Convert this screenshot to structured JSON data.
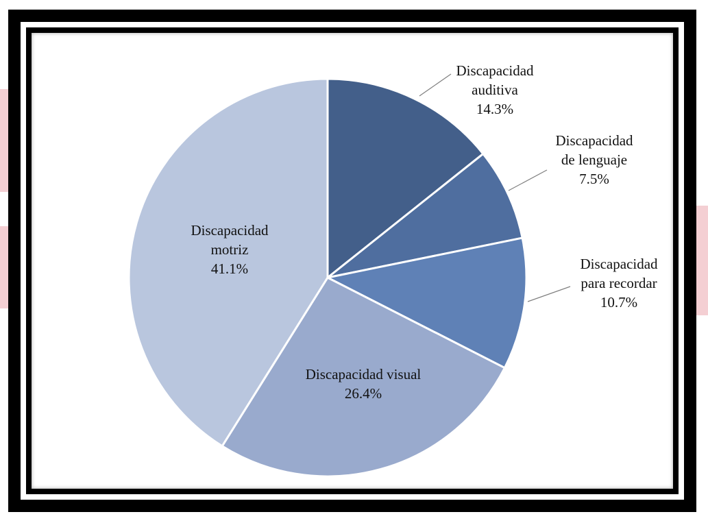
{
  "chart_data": {
    "type": "pie",
    "title": "",
    "slices": [
      {
        "label_lines": [
          "Discapacidad",
          "auditiva"
        ],
        "percent_label": "14.3%",
        "value": 14.3,
        "color": "#435f8a"
      },
      {
        "label_lines": [
          "Discapacidad",
          "de lenguaje"
        ],
        "percent_label": "7.5%",
        "value": 7.5,
        "color": "#4f6e9f"
      },
      {
        "label_lines": [
          "Discapacidad",
          "para recordar"
        ],
        "percent_label": "10.7%",
        "value": 10.7,
        "color": "#5f81b6"
      },
      {
        "label_lines": [
          "Discapacidad visual"
        ],
        "percent_label": "26.4%",
        "value": 26.4,
        "color": "#99aacd"
      },
      {
        "label_lines": [
          "Discapacidad",
          "motriz"
        ],
        "percent_label": "41.1%",
        "value": 41.1,
        "color": "#b9c6de"
      }
    ],
    "start_angle_deg": 0,
    "direction": "clockwise",
    "legend": "none",
    "frame_color": "#000000",
    "background_accent": "#f4cfd3"
  }
}
